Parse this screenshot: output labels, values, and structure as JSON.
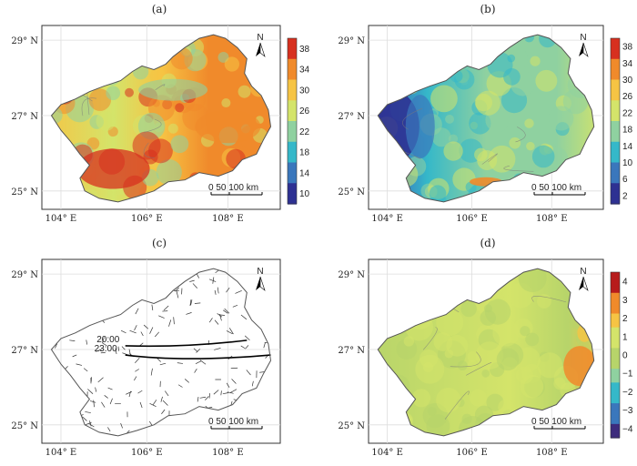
{
  "panels": [
    {
      "id": "a",
      "title": "(a)",
      "variant": "hot",
      "lat_labels": [
        "29° N",
        "27° N",
        "25° N"
      ],
      "lon_labels": [
        "104° E",
        "106° E",
        "108° E"
      ],
      "colorbar": [
        "38",
        "34",
        "30",
        "26",
        "22",
        "18",
        "14",
        "10"
      ],
      "scale_label": "0  50  100 km",
      "north": "N"
    },
    {
      "id": "b",
      "title": "(b)",
      "variant": "cool",
      "lat_labels": [
        "29° N",
        "27° N",
        "25° N"
      ],
      "lon_labels": [
        "104° E",
        "106° E",
        "108° E"
      ],
      "colorbar": [
        "38",
        "34",
        "30",
        "26",
        "22",
        "18",
        "14",
        "10",
        "6",
        "2"
      ],
      "scale_label": "0  50  100 km",
      "north": "N"
    },
    {
      "id": "c",
      "title": "(c)",
      "variant": "wind",
      "lat_labels": [
        "29° N",
        "27° N",
        "25° N"
      ],
      "lon_labels": [
        "104° E",
        "106° E",
        "108° E"
      ],
      "times": [
        "20:00",
        "23:00"
      ],
      "scale_label": "0  50  100 km",
      "north": "N"
    },
    {
      "id": "d",
      "title": "(d)",
      "variant": "diff",
      "lat_labels": [
        "29° N",
        "27° N",
        "25° N"
      ],
      "lon_labels": [
        "104° E",
        "106° E",
        "108° E"
      ],
      "colorbar": [
        "4",
        "3",
        "2",
        "1",
        "0",
        "−1",
        "−2",
        "−3",
        "−4"
      ],
      "scale_label": "0  50  100 km",
      "north": "N"
    }
  ],
  "colors": {
    "outline": "#555555",
    "grid": "#dddddd",
    "hot": [
      "#2e3192",
      "#3a77bc",
      "#35b8c9",
      "#8fd1a0",
      "#d4e46a",
      "#f6c444",
      "#f08a2b",
      "#d7301f"
    ],
    "cool": [
      "#2e3192",
      "#3a77bc",
      "#35b8c9",
      "#8fd1a0",
      "#d4e46a",
      "#f6c444",
      "#f08a2b",
      "#d7301f"
    ],
    "diff": [
      "#3d2b7d",
      "#3a77bc",
      "#35b8c9",
      "#8fd1a0",
      "#b7d46a",
      "#d4e46a",
      "#f6c444",
      "#f08a2b",
      "#b71c1c"
    ]
  }
}
